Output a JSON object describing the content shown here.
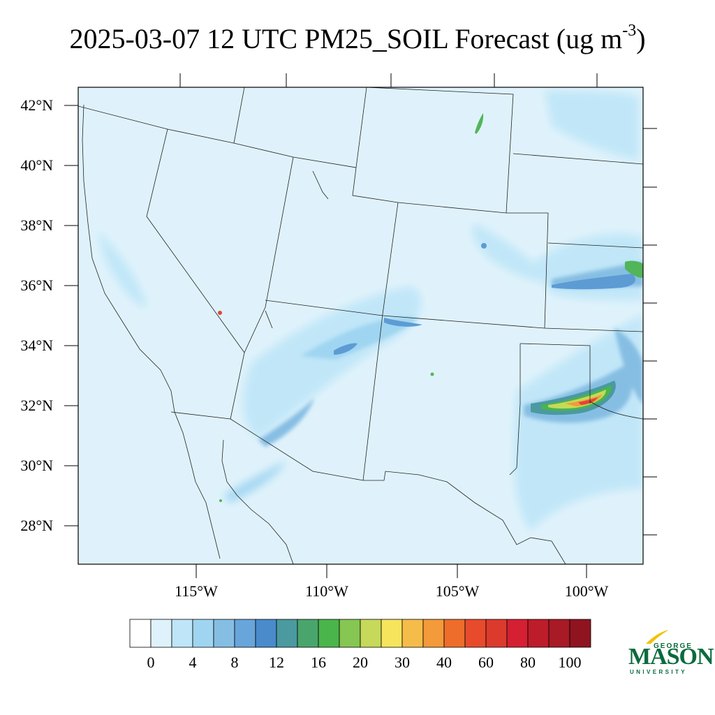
{
  "title": {
    "main": "2025-03-07 12 UTC PM25_SOIL Forecast (ug m",
    "sup": "-3",
    "end": ")"
  },
  "map": {
    "lat_labels": [
      "42°N",
      "40°N",
      "38°N",
      "36°N",
      "34°N",
      "32°N",
      "30°N",
      "28°N"
    ],
    "lon_labels": [
      "115°W",
      "110°W",
      "105°W",
      "100°W"
    ],
    "background_color": "#dff2fb",
    "plume_colors": {
      "light": "#bfe6f8",
      "medium": "#9fd5f1",
      "dark": "#86bee3",
      "blue": "#5d9bd4",
      "teal": "#4a9aa0",
      "green": "#52b55a",
      "yellow": "#f6e45c",
      "orange": "#f39a3a",
      "red": "#e0453a"
    }
  },
  "colorbar": {
    "colors": [
      "#ffffff",
      "#dff2fb",
      "#bfe6f8",
      "#9fd5f1",
      "#86bee3",
      "#68a5db",
      "#4a8bcb",
      "#4a9aa0",
      "#4aa56c",
      "#4ab54a",
      "#86c652",
      "#c6d95a",
      "#f6e45c",
      "#f6bc4a",
      "#f39a3a",
      "#ee6d2b",
      "#e84b2c",
      "#dd3a2e",
      "#d42032",
      "#bd1c2a",
      "#a81a25",
      "#8f1420"
    ],
    "labels": [
      "0",
      "4",
      "8",
      "12",
      "16",
      "20",
      "30",
      "40",
      "60",
      "80",
      "100"
    ]
  },
  "logo": {
    "line1": "GEORGE",
    "line2": "MASON",
    "line3": "UNIVERSITY",
    "color": "#0a6b3d",
    "accent": "#f2c200"
  }
}
